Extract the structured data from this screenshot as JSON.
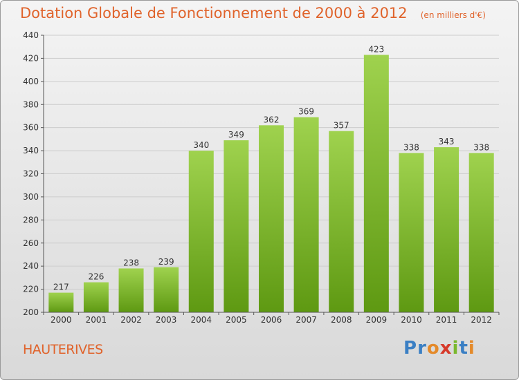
{
  "header": {
    "title": "Dotation Globale de Fonctionnement de 2000 à 2012",
    "unit": "(en milliers d'€)"
  },
  "footer": {
    "commune": "HAUTERIVES",
    "logo_text": "Proxiti",
    "logo_colors": [
      "#3a7fc4",
      "#3a7fc4",
      "#e48a2a",
      "#d63a2b",
      "#7ab82e",
      "#3a7fc4",
      "#e48a2a"
    ]
  },
  "chart_data": {
    "type": "bar",
    "title": "Dotation Globale de Fonctionnement de 2000 à 2012",
    "categories": [
      "2000",
      "2001",
      "2002",
      "2003",
      "2004",
      "2005",
      "2006",
      "2007",
      "2008",
      "2009",
      "2010",
      "2011",
      "2012"
    ],
    "values": [
      217,
      226,
      238,
      239,
      340,
      349,
      362,
      369,
      357,
      423,
      338,
      343,
      338
    ],
    "ylim": [
      200,
      440
    ],
    "yticks": [
      200,
      220,
      240,
      260,
      280,
      300,
      320,
      340,
      360,
      380,
      400,
      420,
      440
    ],
    "grid": true,
    "bar_color_top": "#9fd24e",
    "bar_color_bottom": "#5e9912",
    "grid_color": "#cccccc",
    "text_color": "#333333"
  }
}
